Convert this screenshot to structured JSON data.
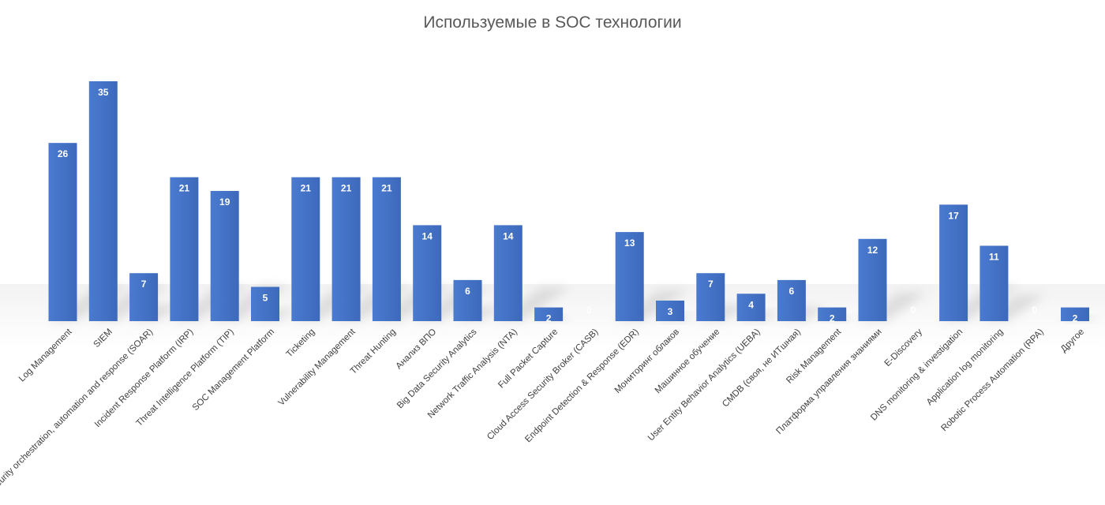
{
  "chart_data": {
    "type": "bar",
    "title": "Используемые в SOC технологии",
    "xlabel": "",
    "ylabel": "",
    "ylim": [
      0,
      35
    ],
    "grid": false,
    "legend": "none",
    "bar_color": "#4472C4",
    "bar_color_dark": "#3158a8",
    "categories": [
      "Log Management",
      "SIEM",
      "Security orchestration, automation and response (SOAR)",
      "Incident Response Platform (IRP)",
      "Threat Intelligence Platform (TIP)",
      "SOC Management Platform",
      "Ticketing",
      "Vulnerability Management",
      "Threat Hunting",
      "Анализ ВПО",
      "Big Data Security Analytics",
      "Network Traffic Analysis (NTA)",
      "Full Packet Capture",
      "Cloud Access Security Broker (CASB)",
      "Endpoint Detection & Response (EDR)",
      "Мониторинг облаков",
      "Машинное обучение",
      "User Entity Behavior Analytics (UEBA)",
      "CMDB (своя, не ИТшная)",
      "Risk Management",
      "Платформа управления знаниями",
      "E-Discovery",
      "DNS monitoring & investigation",
      "Application log monitoring",
      "Robotic Process Automation (RPA)",
      "Другое"
    ],
    "values": [
      26,
      35,
      7,
      21,
      19,
      5,
      21,
      21,
      21,
      14,
      6,
      14,
      2,
      0,
      13,
      3,
      7,
      4,
      6,
      2,
      12,
      0,
      17,
      11,
      0,
      2
    ]
  }
}
